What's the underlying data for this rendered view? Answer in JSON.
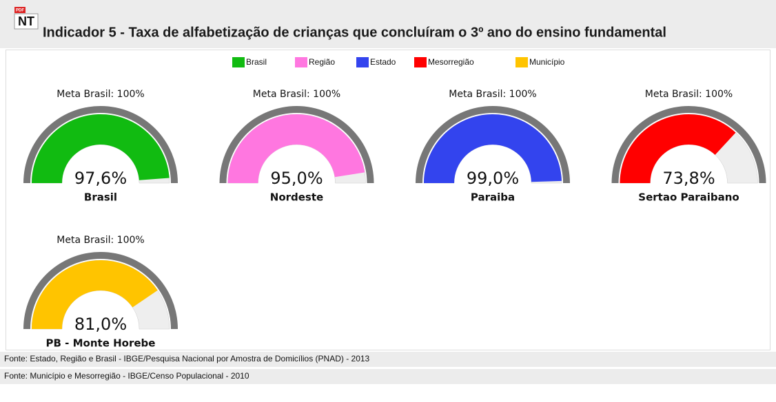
{
  "header": {
    "icon_badge": "PDF",
    "icon_label": "NT",
    "title": "Indicador 5 - Taxa de alfabetização de crianças que concluíram o 3º ano do ensino fundamental"
  },
  "chart_data": {
    "type": "gauge",
    "legend": [
      {
        "name": "Brasil",
        "color": "#11bb11"
      },
      {
        "name": "Região",
        "color": "#ff77e0"
      },
      {
        "name": "Estado",
        "color": "#3344ee"
      },
      {
        "name": "Mesorregião",
        "color": "#ff0000"
      },
      {
        "name": "Município",
        "color": "#ffc400"
      }
    ],
    "ylim": [
      0,
      100
    ],
    "categories": [
      "Brasil",
      "Nordeste",
      "Paraiba",
      "Sertao Paraibano",
      "PB - Monte Horebe"
    ],
    "values": [
      97.6,
      95.0,
      99.0,
      73.8,
      81.0
    ],
    "value_labels": [
      "97,6%",
      "95,0%",
      "99,0%",
      "73,8%",
      "81,0%"
    ],
    "colors": [
      "#11bb11",
      "#ff77e0",
      "#3344ee",
      "#ff0000",
      "#ffc400"
    ],
    "target_labels": [
      "Meta Brasil: 100%",
      "Meta Brasil: 100%",
      "Meta Brasil: 100%",
      "Meta Brasil: 100%",
      "Meta Brasil: 100%"
    ]
  },
  "footer": [
    "Fonte: Estado, Região e Brasil - IBGE/Pesquisa Nacional por Amostra de Domicílios (PNAD) - 2013",
    "Fonte: Município e Mesorregião - IBGE/Censo Populacional - 2010"
  ]
}
